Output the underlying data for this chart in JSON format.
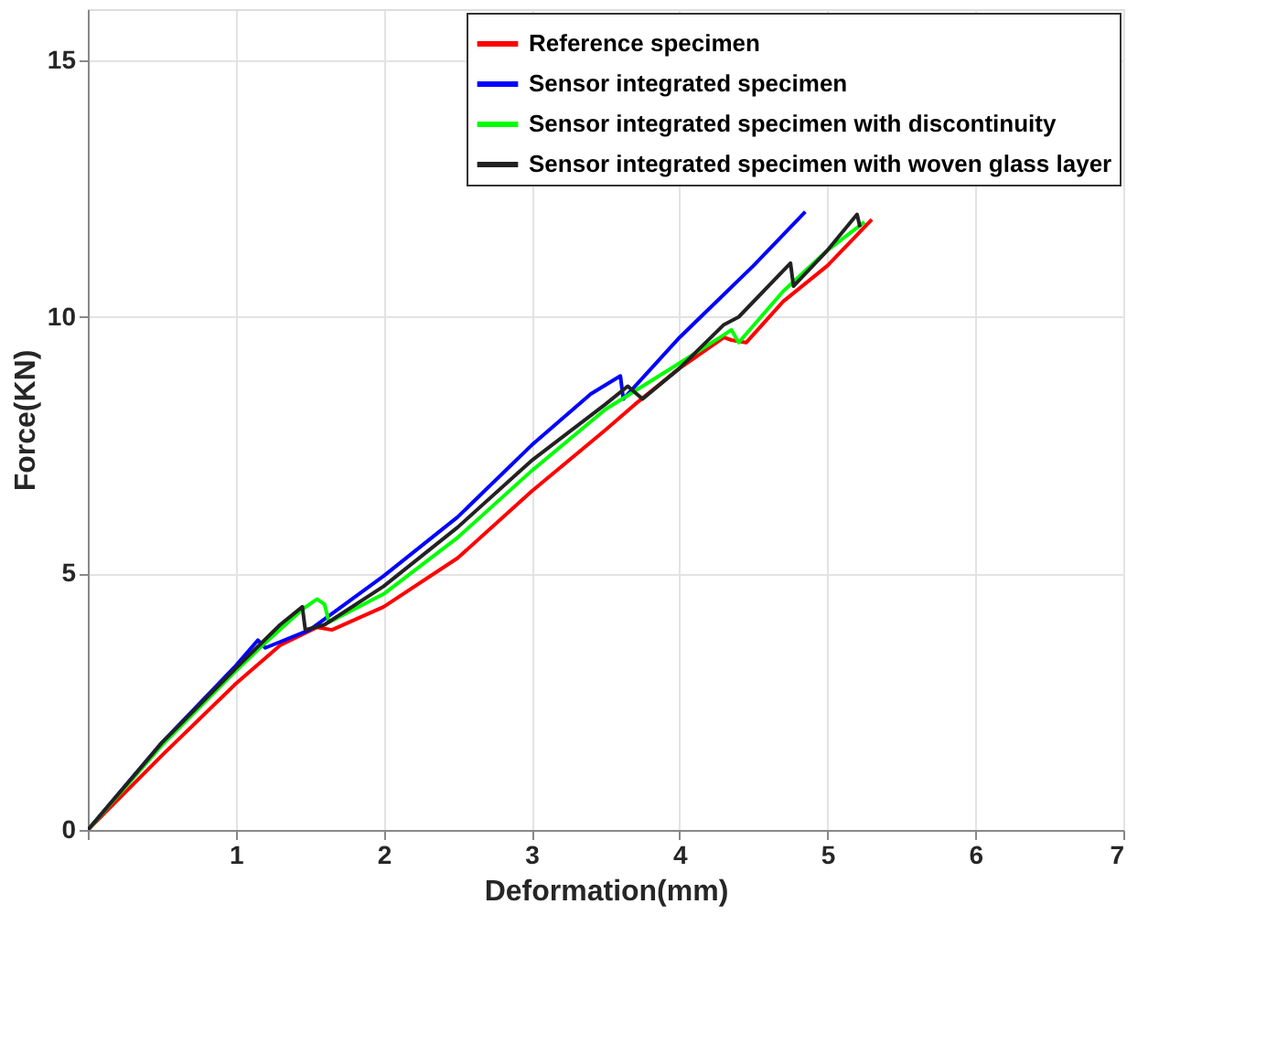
{
  "chart_data": {
    "type": "line",
    "xlabel": "Deformation(mm)",
    "ylabel": "Force(KN)",
    "xlim": [
      0,
      7
    ],
    "ylim": [
      0,
      16
    ],
    "xticks": [
      {
        "value": 0,
        "label": null
      },
      1,
      2,
      3,
      4,
      5,
      6,
      7
    ],
    "yticks": [
      0,
      5,
      10,
      15
    ],
    "grid": true,
    "legend": "top right",
    "series": [
      {
        "name": "Reference specimen",
        "color": "#ff0000",
        "x": [
          0,
          0.5,
          1,
          1.3,
          1.55,
          1.65,
          2,
          2.5,
          3,
          3.5,
          3.7,
          4,
          4.3,
          4.35,
          4.45,
          4.7,
          5,
          5.3
        ],
        "values": [
          0,
          1.45,
          2.85,
          3.6,
          3.95,
          3.9,
          4.35,
          5.3,
          6.6,
          7.8,
          8.3,
          9.0,
          9.6,
          9.55,
          9.5,
          10.3,
          11.0,
          11.9
        ]
      },
      {
        "name": "Sensor integrated specimen",
        "color": "#0000ff",
        "x": [
          0,
          0.5,
          1,
          1.15,
          1.2,
          1.5,
          2,
          2.5,
          3,
          3.4,
          3.6,
          3.62,
          4,
          4.5,
          4.8,
          4.85
        ],
        "values": [
          0,
          1.7,
          3.2,
          3.7,
          3.55,
          3.9,
          4.95,
          6.1,
          7.5,
          8.5,
          8.85,
          8.4,
          9.6,
          11.0,
          11.9,
          12.05
        ]
      },
      {
        "name": "Sensor integrated specimen with discontinuity",
        "color": "#00ff00",
        "x": [
          0,
          0.5,
          1,
          1.2,
          1.45,
          1.55,
          1.6,
          1.63,
          2,
          2.5,
          3,
          3.5,
          4,
          4.3,
          4.35,
          4.4,
          4.7,
          5.0,
          5.25
        ],
        "values": [
          0,
          1.65,
          3.1,
          3.65,
          4.3,
          4.5,
          4.4,
          4.05,
          4.6,
          5.7,
          7.0,
          8.2,
          9.1,
          9.65,
          9.75,
          9.5,
          10.5,
          11.3,
          11.85
        ]
      },
      {
        "name": "Sensor integrated specimen with woven glass layer",
        "color": "#222222",
        "x": [
          0,
          0.5,
          1,
          1.3,
          1.45,
          1.47,
          1.6,
          2,
          2.5,
          3,
          3.5,
          3.65,
          3.75,
          4,
          4.3,
          4.4,
          4.75,
          4.77,
          5.0,
          5.2,
          5.22
        ],
        "values": [
          0,
          1.7,
          3.15,
          4.0,
          4.35,
          3.9,
          4.0,
          4.75,
          5.9,
          7.2,
          8.3,
          8.65,
          8.4,
          9.0,
          9.85,
          10.0,
          11.05,
          10.6,
          11.3,
          12.0,
          11.75
        ]
      }
    ]
  }
}
